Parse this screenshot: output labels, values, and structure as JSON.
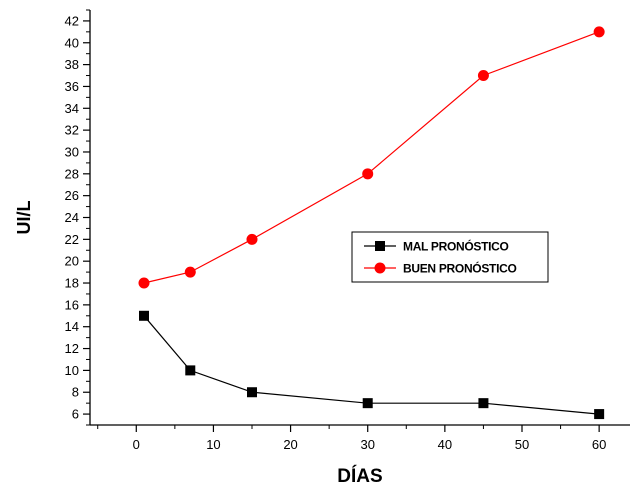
{
  "chart_data": {
    "type": "line",
    "title": "",
    "xlabel": "DÍAS",
    "ylabel": "UI/L",
    "xlim": [
      -6,
      64
    ],
    "ylim": [
      5,
      43
    ],
    "x_ticks": [
      0,
      10,
      20,
      30,
      40,
      50,
      60
    ],
    "y_ticks": [
      6,
      8,
      10,
      12,
      14,
      16,
      18,
      20,
      22,
      24,
      26,
      28,
      30,
      32,
      34,
      36,
      38,
      40,
      42
    ],
    "grid": false,
    "legend_position": "center-right",
    "x": [
      1,
      7,
      15,
      30,
      45,
      60
    ],
    "series": [
      {
        "name": "MAL PRONÓSTICO",
        "color": "#000000",
        "marker": "square",
        "values": [
          15,
          10,
          8,
          7,
          7,
          6
        ]
      },
      {
        "name": "BUEN PRONÓSTICO",
        "color": "#ff0000",
        "marker": "circle",
        "values": [
          18,
          19,
          22,
          28,
          37,
          41
        ]
      }
    ]
  }
}
